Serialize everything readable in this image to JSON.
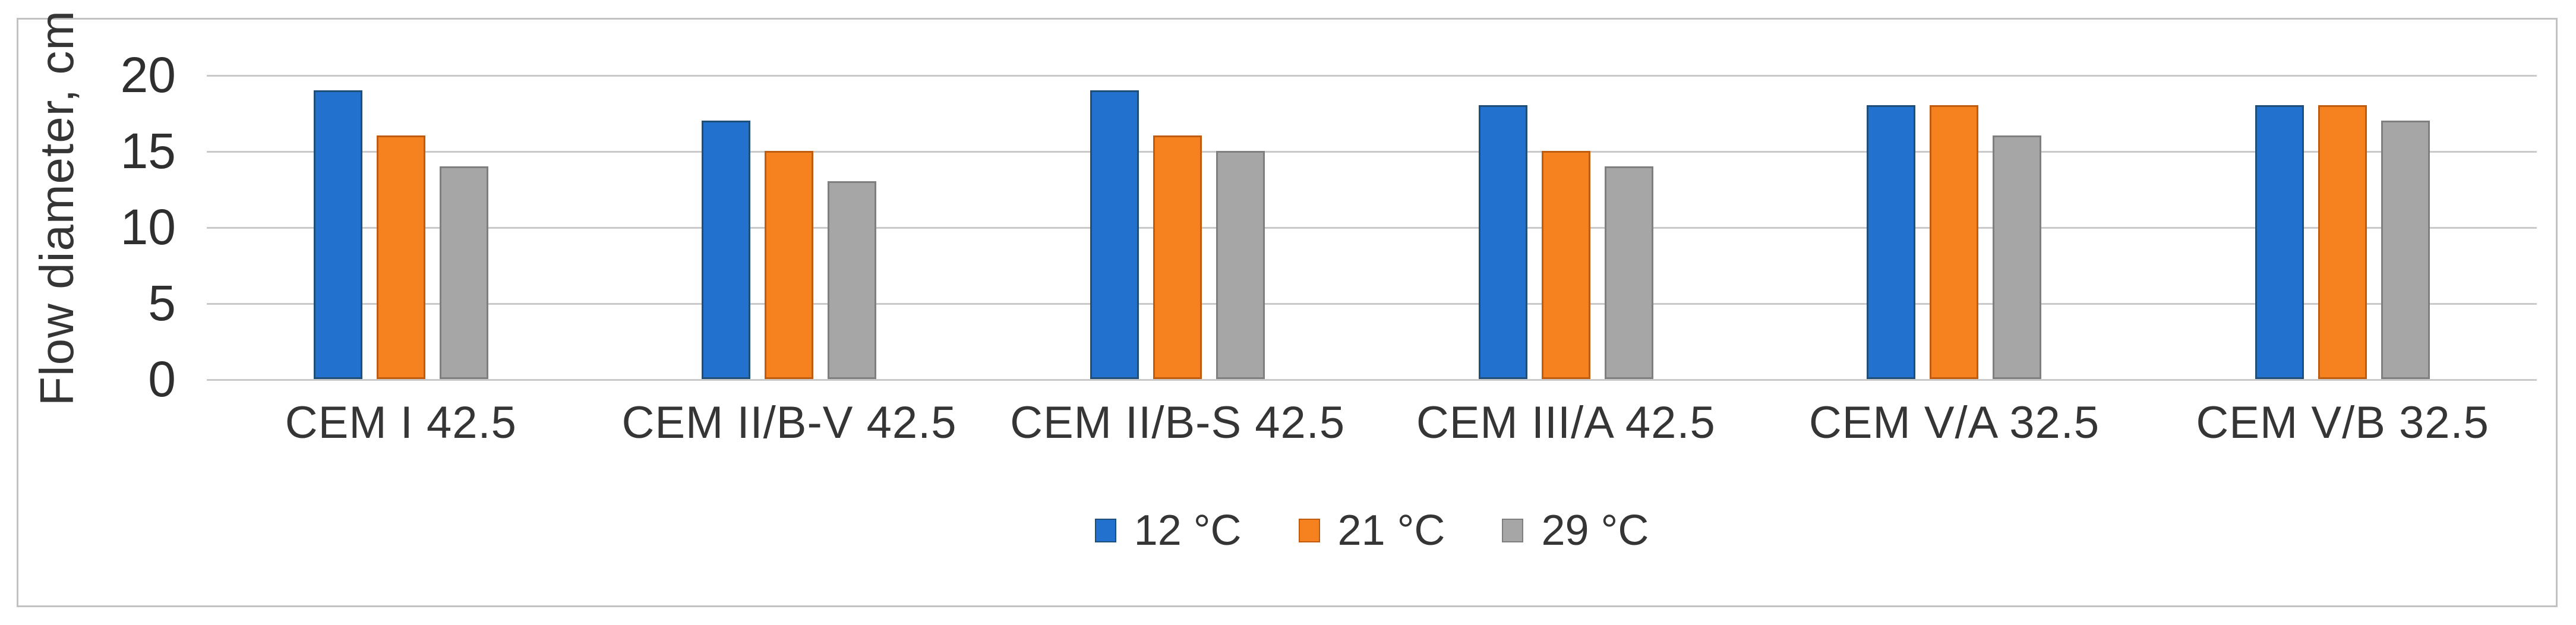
{
  "figure": {
    "background_color": "#ffffff",
    "frame_border_color": "#c2c2c2",
    "text_color": "#353535",
    "gridline_color": "#c9c9c9"
  },
  "chart_data": {
    "type": "bar",
    "title": "",
    "xlabel": "",
    "ylabel": "Flow diameter, cm",
    "ylim": [
      0,
      20
    ],
    "yticks": [
      0,
      5,
      10,
      15,
      20
    ],
    "grid": true,
    "legend_position": "bottom-center",
    "categories": [
      "CEM I 42.5",
      "CEM II/B-V 42.5",
      "CEM II/B-S 42.5",
      "CEM III/A 42.5",
      "CEM V/A 32.5",
      "CEM V/B 32.5"
    ],
    "series": [
      {
        "name": "12 °C",
        "color": "#2271ce",
        "border_color": "#1f4e79",
        "values": [
          19,
          17,
          19,
          18,
          18,
          18
        ]
      },
      {
        "name": "21 °C",
        "color": "#f5821e",
        "border_color": "#c05c10",
        "values": [
          16,
          15,
          16,
          15,
          18,
          18
        ]
      },
      {
        "name": "29 °C",
        "color": "#a6a6a6",
        "border_color": "#7f7f7f",
        "values": [
          14,
          13,
          15,
          14,
          16,
          17
        ]
      }
    ]
  }
}
